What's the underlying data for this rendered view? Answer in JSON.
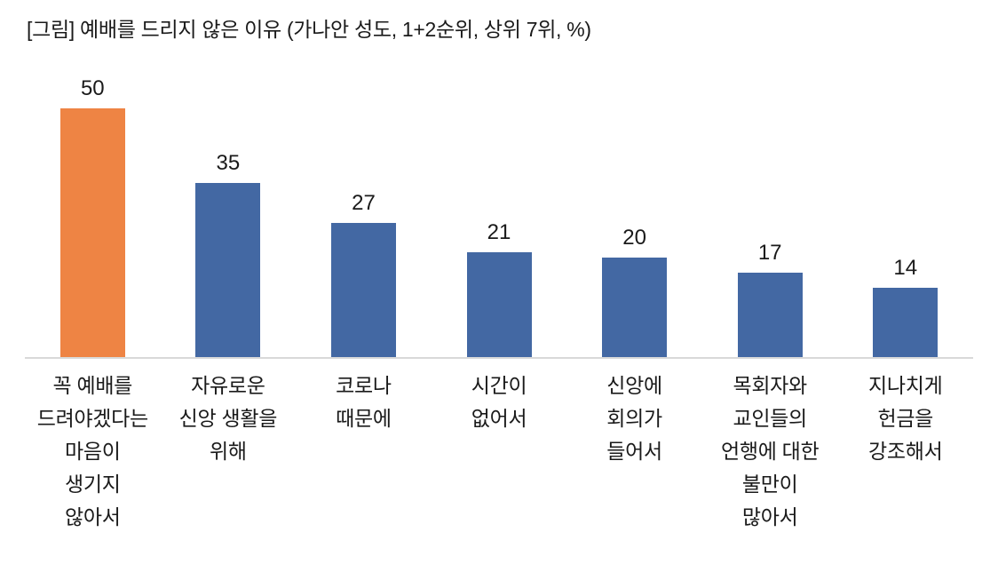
{
  "title": "[그림] 예배를 드리지 않은 이유 (가나안 성도, 1+2순위, 상위 7위, %)",
  "colors": {
    "highlight_bar": "#EE8444",
    "default_bar": "#4368A3",
    "axis_line": "#D9D9D9",
    "text": "#1A1A1A"
  },
  "chart_data": {
    "type": "bar",
    "title": "[그림] 예배를 드리지 않은 이유 (가나안 성도, 1+2순위, 상위 7위, %)",
    "categories": [
      "꼭 예배를\n드려야겠다는\n마음이\n생기지\n않아서",
      "자유로운\n신앙 생활을\n위해",
      "코로나\n때문에",
      "시간이\n없어서",
      "신앙에\n회의가\n들어서",
      "목회자와\n교인들의\n언행에 대한\n불만이\n많아서",
      "지나치게\n헌금을\n강조해서"
    ],
    "values": [
      50,
      35,
      27,
      21,
      20,
      17,
      14
    ],
    "bar_colors": [
      "#EE8444",
      "#4368A3",
      "#4368A3",
      "#4368A3",
      "#4368A3",
      "#4368A3",
      "#4368A3"
    ],
    "xlabel": "",
    "ylabel": "",
    "ylim": [
      0,
      55
    ],
    "unit": "%",
    "data_labels": true,
    "gridlines": false,
    "legend": "none",
    "y_axis_visible": false,
    "x_axis_line": true
  }
}
